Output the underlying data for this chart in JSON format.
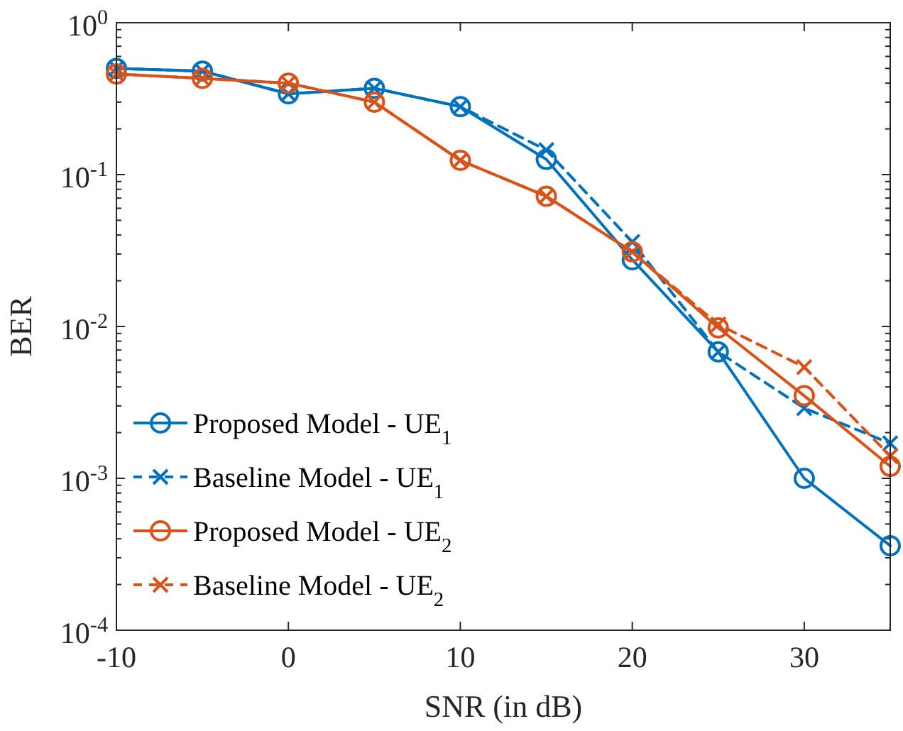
{
  "chart_data": {
    "type": "line",
    "xlabel": "SNR (in dB)",
    "ylabel": "BER",
    "log": "y",
    "grid": false,
    "legend": "bottom left",
    "x": [
      -10,
      -5,
      0,
      5,
      10,
      15,
      20,
      25,
      30,
      35
    ],
    "xlim": [
      -10,
      35
    ],
    "xticks": [
      -10,
      0,
      10,
      20,
      30
    ],
    "ylim": [
      0.0001,
      1
    ],
    "yticks": [
      {
        "value": 0.0001,
        "label": "10$^{-4}$"
      },
      {
        "value": 0.001,
        "label": "10$^{-3}$"
      },
      {
        "value": 0.01,
        "label": "10$^{-2}$"
      },
      {
        "value": 0.1,
        "label": "10$^{-1}$"
      },
      {
        "value": 1,
        "label": "10$^{0}$"
      }
    ],
    "series": [
      {
        "name": "Proposed Model - UE$_{1}$",
        "color": "#0072bd",
        "marker": "circle",
        "line_style": "solid",
        "values": [
          0.5,
          0.48,
          0.34,
          0.37,
          0.28,
          0.126,
          0.0275,
          0.0068,
          0.001,
          0.00036
        ]
      },
      {
        "name": "Baseline Model - UE$_{1}$",
        "color": "#0072bd",
        "marker": "cross",
        "line_style": "dashed",
        "values": [
          0.5,
          0.48,
          0.34,
          0.37,
          0.28,
          0.145,
          0.036,
          0.0068,
          0.0029,
          0.0017
        ]
      },
      {
        "name": "Proposed Model - UE$_{2}$",
        "color": "#d95319",
        "marker": "circle",
        "line_style": "solid",
        "values": [
          0.46,
          0.43,
          0.4,
          0.3,
          0.124,
          0.072,
          0.031,
          0.0098,
          0.0035,
          0.0012
        ]
      },
      {
        "name": "Baseline Model - UE$_{2}$",
        "color": "#d95319",
        "marker": "cross",
        "line_style": "dashed",
        "values": [
          0.46,
          0.43,
          0.4,
          0.3,
          0.124,
          0.072,
          0.031,
          0.0103,
          0.0054,
          0.0014
        ]
      }
    ]
  }
}
